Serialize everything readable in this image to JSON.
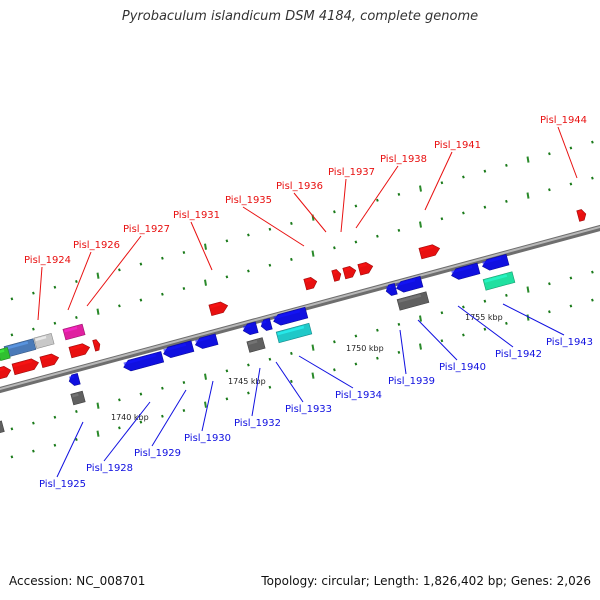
{
  "title": "Pyrobaculum islandicum DSM 4184, complete genome",
  "footer": {
    "accession": "Accession: NC_008701",
    "summary": "Topology: circular; Length: 1,826,402 bp; Genes: 2,026"
  },
  "colors": {
    "forward": "#e81010",
    "reverse": "#1010e0",
    "backbone": "#8a8a8a",
    "minor_tick": "#1a7a1a",
    "major_tick": "#2a8a2a"
  },
  "ticks": [
    {
      "label": "1740 kbp"
    },
    {
      "label": "1745 kbp"
    },
    {
      "label": "1750 kbp"
    },
    {
      "label": "1755 kbp"
    }
  ],
  "labels": [
    {
      "text": "Pisl_1924",
      "strand": "forward"
    },
    {
      "text": "Pisl_1926",
      "strand": "forward"
    },
    {
      "text": "Pisl_1927",
      "strand": "forward"
    },
    {
      "text": "Pisl_1931",
      "strand": "forward"
    },
    {
      "text": "Pisl_1935",
      "strand": "forward"
    },
    {
      "text": "Pisl_1936",
      "strand": "forward"
    },
    {
      "text": "Pisl_1937",
      "strand": "forward"
    },
    {
      "text": "Pisl_1938",
      "strand": "forward"
    },
    {
      "text": "Pisl_1941",
      "strand": "forward"
    },
    {
      "text": "Pisl_1944",
      "strand": "forward"
    },
    {
      "text": "Pisl_1925",
      "strand": "reverse"
    },
    {
      "text": "Pisl_1928",
      "strand": "reverse"
    },
    {
      "text": "Pisl_1929",
      "strand": "reverse"
    },
    {
      "text": "Pisl_1930",
      "strand": "reverse"
    },
    {
      "text": "Pisl_1932",
      "strand": "reverse"
    },
    {
      "text": "Pisl_1933",
      "strand": "reverse"
    },
    {
      "text": "Pisl_1934",
      "strand": "reverse"
    },
    {
      "text": "Pisl_1939",
      "strand": "reverse"
    },
    {
      "text": "Pisl_1940",
      "strand": "reverse"
    },
    {
      "text": "Pisl_1942",
      "strand": "reverse"
    },
    {
      "text": "Pisl_1943",
      "strand": "reverse"
    }
  ]
}
